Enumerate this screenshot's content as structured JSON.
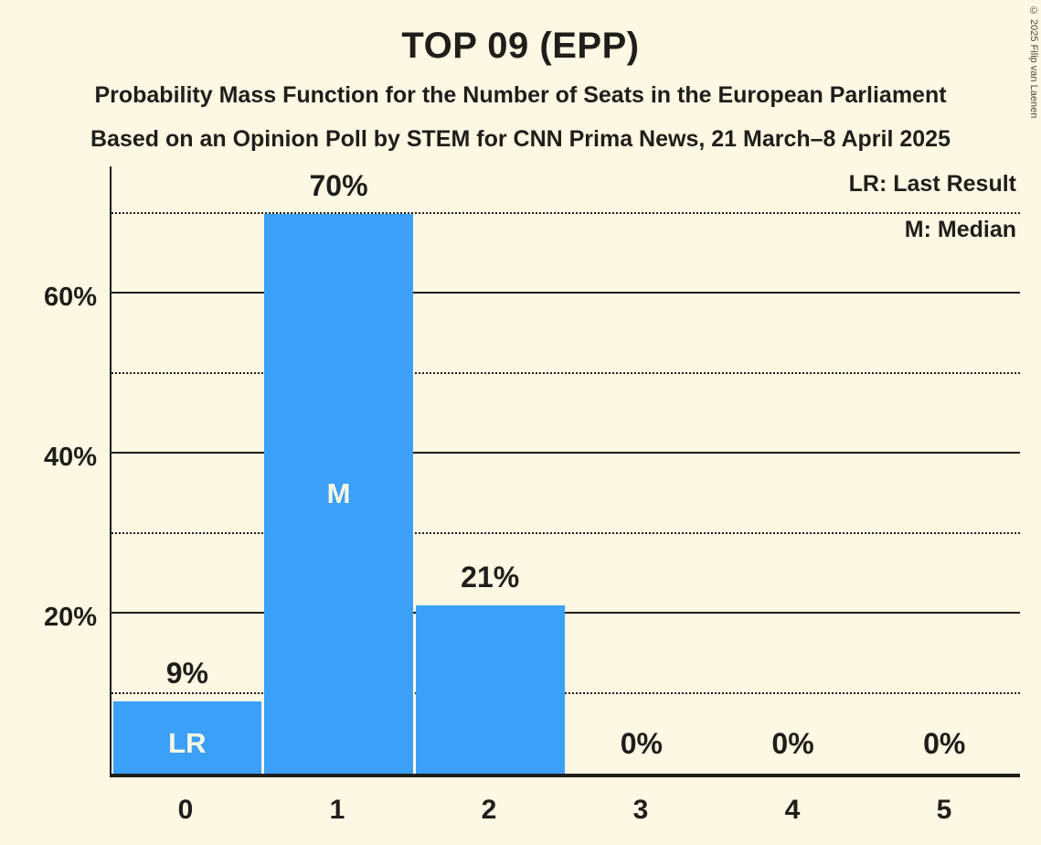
{
  "title": "TOP 09 (EPP)",
  "subtitle1": "Probability Mass Function for the Number of Seats in the European Parliament",
  "subtitle2": "Based on an Opinion Poll by STEM for CNN Prima News, 21 March–8 April 2025",
  "copyright": "© 2025 Filip van Laenen",
  "legend": {
    "lr": "LR: Last Result",
    "m": "M: Median"
  },
  "colors": {
    "background": "#FCF8E3",
    "bar": "#3BA0F8",
    "text": "#1F1E1A"
  },
  "chart_data": {
    "type": "bar",
    "title": "TOP 09 (EPP)",
    "categories": [
      "0",
      "1",
      "2",
      "3",
      "4",
      "5"
    ],
    "values": [
      9,
      70,
      21,
      0,
      0,
      0
    ],
    "bar_value_labels": [
      "9%",
      "70%",
      "21%",
      "0%",
      "0%",
      "0%"
    ],
    "bar_annotations": [
      {
        "index": 0,
        "label": "LR",
        "meaning": "Last Result"
      },
      {
        "index": 1,
        "label": "M",
        "meaning": "Median"
      }
    ],
    "xlabel": "",
    "ylabel": "",
    "ylim": [
      0,
      76.4
    ],
    "yticks_solid": [
      20,
      40,
      60
    ],
    "ytick_labels": [
      "20%",
      "40%",
      "60%"
    ],
    "yticks_dotted": [
      10,
      30,
      50,
      70
    ],
    "grid": "horizontal",
    "legend_position": "top-right"
  }
}
